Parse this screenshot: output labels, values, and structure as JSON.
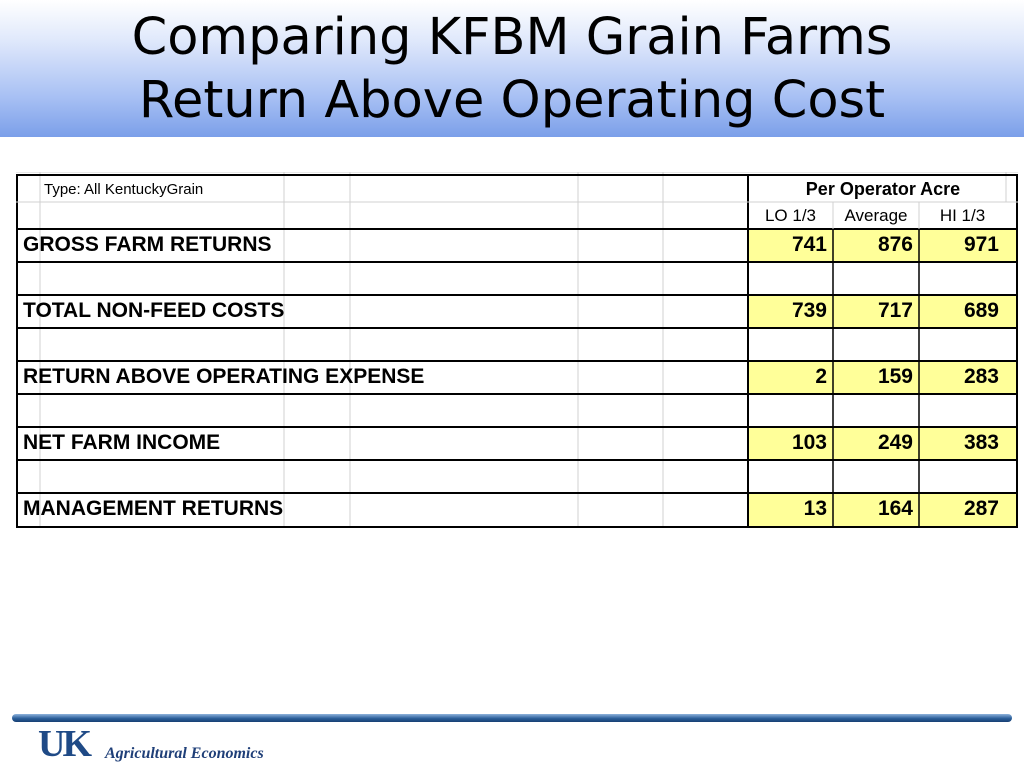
{
  "slide": {
    "title_line1": "Comparing KFBM Grain Farms",
    "title_line2": "Return Above Operating Cost"
  },
  "table": {
    "type_label": "Type:  All KentuckyGrain",
    "group_header": "Per Operator Acre",
    "columns": [
      "LO 1/3",
      "Average",
      "HI 1/3"
    ],
    "rows": [
      {
        "label": "GROSS FARM RETURNS",
        "values": [
          "741",
          "876",
          "971"
        ]
      },
      {
        "label": "TOTAL NON-FEED COSTS",
        "values": [
          "739",
          "717",
          "689"
        ]
      },
      {
        "label": "RETURN ABOVE OPERATING EXPENSE",
        "values": [
          "2",
          "159",
          "283"
        ]
      },
      {
        "label": "NET FARM INCOME",
        "values": [
          "103",
          "249",
          "383"
        ]
      },
      {
        "label": "MANAGEMENT RETURNS",
        "values": [
          "13",
          "164",
          "287"
        ]
      }
    ],
    "highlight_color": "#ffff99"
  },
  "footer": {
    "logo_text": "UK",
    "department": "Agricultural Economics"
  }
}
